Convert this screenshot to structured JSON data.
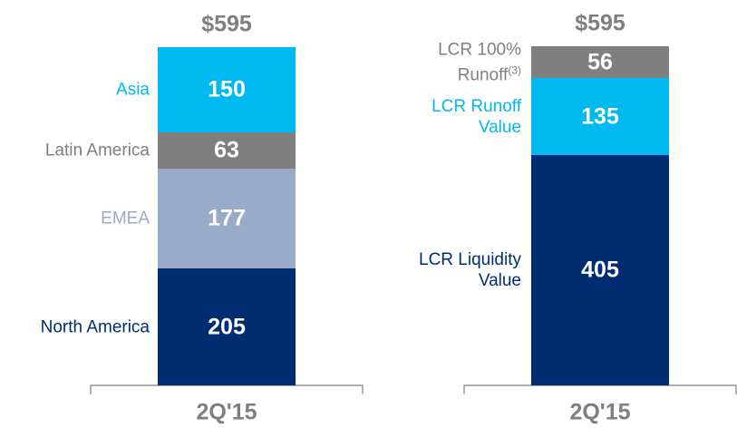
{
  "chart_data": [
    {
      "type": "stacked_bar",
      "categories": [
        "2Q'15"
      ],
      "total_label": "$595",
      "ylim": [
        0,
        595
      ],
      "series": [
        {
          "name": "North America",
          "color": "#002d72",
          "label_color": "#002d72",
          "values": [
            205
          ]
        },
        {
          "name": "EMEA",
          "color": "#9aabca",
          "label_color": "#9aabca",
          "values": [
            177
          ]
        },
        {
          "name": "Latin America",
          "color": "#7f7f7f",
          "label_color": "#7f7f7f",
          "values": [
            63
          ]
        },
        {
          "name": "Asia",
          "color": "#00b9f1",
          "label_color": "#00b9f1",
          "values": [
            150
          ]
        }
      ]
    },
    {
      "type": "stacked_bar",
      "categories": [
        "2Q'15"
      ],
      "total_label": "$595",
      "ylim": [
        0,
        595
      ],
      "series": [
        {
          "name": "LCR Liquidity Value",
          "color": "#002d72",
          "label_color": "#002d72",
          "values": [
            405
          ]
        },
        {
          "name": "LCR Runoff Value",
          "color": "#00b9f1",
          "label_color": "#00b9f1",
          "values": [
            135
          ]
        },
        {
          "name": "LCR 100% Runoff",
          "footnote": "(3)",
          "color": "#7f7f7f",
          "label_color": "#7f7f7f",
          "values": [
            56
          ],
          "highlight": true
        }
      ]
    }
  ]
}
